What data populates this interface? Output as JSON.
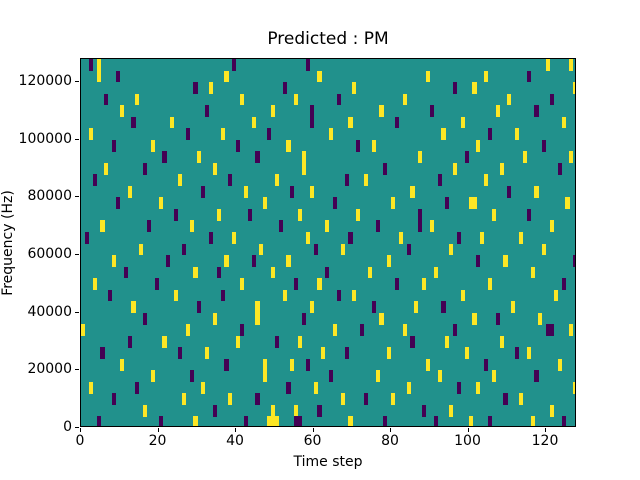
{
  "chart_data": {
    "type": "heatmap",
    "title": "Predicted : PM",
    "xlabel": "Time step",
    "ylabel": "Frequency (Hz)",
    "xlim": [
      0,
      128
    ],
    "ylim": [
      0,
      128000
    ],
    "x_ticks": [
      0,
      20,
      40,
      60,
      80,
      100,
      120
    ],
    "x_tick_labels": [
      "0",
      "20",
      "40",
      "60",
      "80",
      "100",
      "120"
    ],
    "y_ticks": [
      0,
      20000,
      40000,
      60000,
      80000,
      100000,
      120000
    ],
    "y_tick_labels": [
      "0",
      "20000",
      "40000",
      "60000",
      "80000",
      "100000",
      "120000"
    ],
    "grid": {
      "cols": 128,
      "rows": 32,
      "row0": "top"
    },
    "colors": {
      "background_teal": "#21918c",
      "yellow": "#fde725",
      "purple": "#440154",
      "axes": "#000000",
      "figure_background": "#ffffff"
    },
    "legend": null,
    "cells_note": "rows listed top-to-bottom; y = yellow mark columns, p = purple mark columns",
    "rows": [
      {
        "y": [
          4,
          120,
          126
        ],
        "p": [
          2,
          39,
          58
        ]
      },
      {
        "y": [
          4,
          37,
          61,
          89,
          104
        ],
        "p": [
          9,
          115
        ]
      },
      {
        "y": [
          33,
          70,
          101,
          127
        ],
        "p": [
          29,
          52,
          96
        ]
      },
      {
        "y": [
          14,
          41,
          55,
          83,
          110
        ],
        "p": [
          6,
          66,
          121
        ]
      },
      {
        "y": [
          10,
          49,
          77,
          107
        ],
        "p": [
          32,
          59,
          90,
          117
        ]
      },
      {
        "y": [
          23,
          44,
          69,
          98,
          124
        ],
        "p": [
          13,
          59,
          81
        ]
      },
      {
        "y": [
          2,
          36,
          64,
          93,
          112
        ],
        "p": [
          27,
          48,
          105
        ]
      },
      {
        "y": [
          18,
          53,
          75,
          102
        ],
        "p": [
          8,
          40,
          71,
          119
        ]
      },
      {
        "y": [
          30,
          57,
          87,
          114,
          126
        ],
        "p": [
          21,
          45,
          99
        ]
      },
      {
        "y": [
          6,
          34,
          57,
          96,
          108
        ],
        "p": [
          16,
          78,
          123
        ]
      },
      {
        "y": [
          25,
          50,
          73,
          104
        ],
        "p": [
          3,
          38,
          68,
          92
        ]
      },
      {
        "y": [
          12,
          42,
          59,
          85,
          117
        ],
        "p": [
          31,
          54,
          110
        ]
      },
      {
        "y": [
          20,
          47,
          80,
          100,
          101,
          125
        ],
        "p": [
          9,
          65,
          94
        ]
      },
      {
        "y": [
          35,
          56,
          71,
          106
        ],
        "p": [
          24,
          43,
          87,
          115
        ]
      },
      {
        "y": [
          5,
          28,
          63,
          90,
          121
        ],
        "p": [
          17,
          51,
          76,
          87
        ]
      },
      {
        "y": [
          39,
          58,
          82,
          103,
          113
        ],
        "p": [
          1,
          33,
          69,
          97
        ]
      },
      {
        "y": [
          15,
          46,
          67,
          95,
          119
        ],
        "p": [
          26,
          60,
          84
        ]
      },
      {
        "y": [
          8,
          37,
          53,
          79,
          109
        ],
        "p": [
          22,
          44,
          102,
          127
        ]
      },
      {
        "y": [
          29,
          49,
          74,
          91,
          116
        ],
        "p": [
          11,
          35,
          63
        ]
      },
      {
        "y": [
          3,
          41,
          61,
          88,
          105
        ],
        "p": [
          19,
          55,
          81,
          124
        ]
      },
      {
        "y": [
          24,
          52,
          70,
          98,
          122
        ],
        "p": [
          7,
          36,
          66
        ]
      },
      {
        "y": [
          13,
          45,
          59,
          86,
          111
        ],
        "p": [
          30,
          75,
          93
        ]
      },
      {
        "y": [
          34,
          45,
          77,
          101,
          118
        ],
        "p": [
          16,
          57,
          107
        ]
      },
      {
        "y": [
          0,
          27,
          65,
          83,
          126
        ],
        "p": [
          41,
          72,
          96,
          120,
          121
        ]
      },
      {
        "y": [
          21,
          40,
          56,
          94,
          108
        ],
        "p": [
          12,
          50,
          85
        ]
      },
      {
        "y": [
          32,
          62,
          79,
          99,
          115
        ],
        "p": [
          5,
          25,
          68,
          112
        ]
      },
      {
        "y": [
          10,
          47,
          54,
          89,
          123
        ],
        "p": [
          37,
          58,
          104
        ]
      },
      {
        "y": [
          18,
          47,
          76,
          92,
          106
        ],
        "p": [
          28,
          64,
          117
        ]
      },
      {
        "y": [
          2,
          31,
          60,
          84,
          102,
          127
        ],
        "p": [
          14,
          53,
          97
        ]
      },
      {
        "y": [
          26,
          38,
          67,
          80,
          113
        ],
        "p": [
          8,
          45,
          73,
          109
        ]
      },
      {
        "y": [
          16,
          49,
          55,
          95,
          121
        ],
        "p": [
          34,
          61,
          88
        ]
      },
      {
        "y": [
          29,
          48,
          49,
          50,
          69,
          100,
          116
        ],
        "p": [
          4,
          20,
          42,
          55,
          56,
          78,
          91,
          105,
          124
        ]
      }
    ]
  }
}
